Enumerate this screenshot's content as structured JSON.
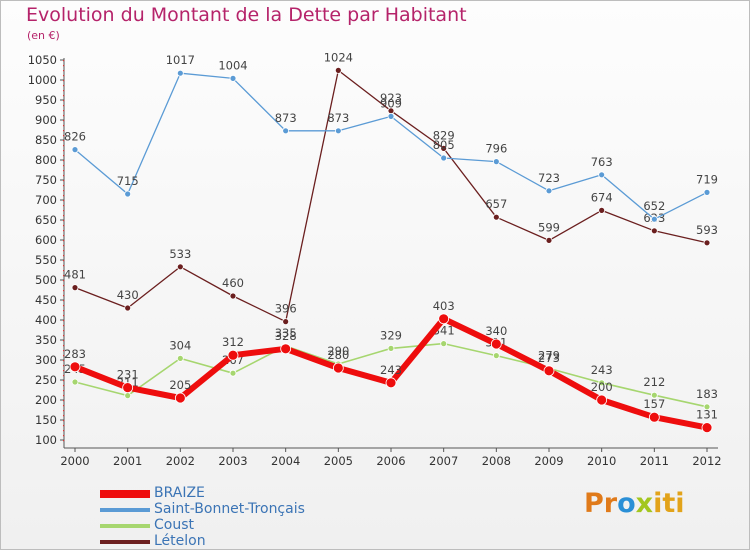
{
  "title": "Evolution du Montant de la Dette par Habitant",
  "unit_label": "(en €)",
  "logo": {
    "p1": "Pr",
    "p2": "o",
    "p3": "x",
    "p4": "iti"
  },
  "chart_data": {
    "type": "line",
    "title": "Evolution du Montant de la Dette par Habitant",
    "ylabel": "(en €)",
    "xlabel": "",
    "x": [
      "2000",
      "2001",
      "2002",
      "2003",
      "2004",
      "2005",
      "2006",
      "2007",
      "2008",
      "2009",
      "2010",
      "2011",
      "2012"
    ],
    "ylim": [
      100,
      1050
    ],
    "yticks": [
      100,
      150,
      200,
      250,
      300,
      350,
      400,
      450,
      500,
      550,
      600,
      650,
      700,
      750,
      800,
      850,
      900,
      950,
      1000,
      1050
    ],
    "grid": false,
    "legend_position": "bottom-left",
    "series": [
      {
        "name": "Lételon",
        "color": "#6b1f1f",
        "width": 1.3,
        "values": [
          481,
          430,
          533,
          460,
          396,
          1024,
          923,
          829,
          657,
          599,
          674,
          623,
          593
        ]
      },
      {
        "name": "Saint-Bonnet-Tronçais",
        "color": "#5b9bd5",
        "width": 1.3,
        "values": [
          826,
          715,
          1017,
          1004,
          873,
          873,
          909,
          805,
          796,
          723,
          763,
          652,
          719
        ]
      },
      {
        "name": "Coust",
        "color": "#a6d66f",
        "width": 1.6,
        "values": [
          245,
          211,
          304,
          267,
          335,
          290,
          329,
          341,
          311,
          279,
          243,
          212,
          183
        ]
      },
      {
        "name": "BRAIZE",
        "color": "#ee0d0d",
        "width": 6,
        "values": [
          283,
          231,
          205,
          312,
          328,
          280,
          243,
          403,
          340,
          273,
          200,
          157,
          131
        ]
      }
    ],
    "legend_order": [
      "BRAIZE",
      "Saint-Bonnet-Tronçais",
      "Coust",
      "Lételon"
    ]
  }
}
